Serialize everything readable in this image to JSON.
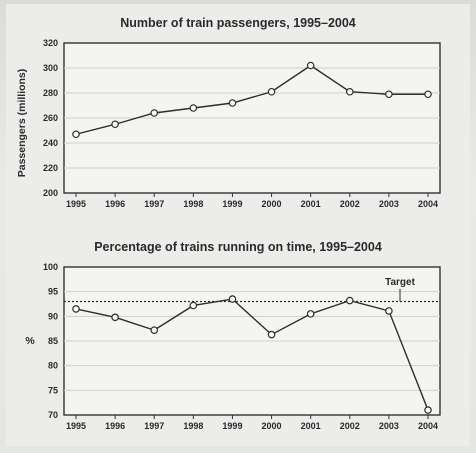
{
  "chart_data": [
    {
      "type": "line",
      "title": "Number of train passengers, 1995–2004",
      "xlabel": "",
      "ylabel": "Passengers (millions)",
      "x": [
        "1995",
        "1996",
        "1997",
        "1998",
        "1999",
        "2000",
        "2001",
        "2002",
        "2003",
        "2004"
      ],
      "series": [
        {
          "values": [
            247,
            255,
            264,
            268,
            272,
            281,
            302,
            281,
            279,
            279
          ]
        }
      ],
      "ylim": [
        200,
        320
      ],
      "yticks": [
        "200",
        "220",
        "240",
        "260",
        "280",
        "300",
        "320"
      ],
      "grid": true,
      "legend": "none"
    },
    {
      "type": "line",
      "title": "Percentage of trains running on time, 1995–2004",
      "xlabel": "",
      "ylabel": "%",
      "x": [
        "1995",
        "1996",
        "1997",
        "1998",
        "1999",
        "2000",
        "2001",
        "2002",
        "2003",
        "2004"
      ],
      "series": [
        {
          "values": [
            91.5,
            89.8,
            87.2,
            92.2,
            93.5,
            86.3,
            90.5,
            93.2,
            91.1,
            71
          ]
        }
      ],
      "target": {
        "label": "Target",
        "value": 93
      },
      "ylim": [
        70,
        100
      ],
      "yticks": [
        "70",
        "75",
        "80",
        "85",
        "90",
        "95",
        "100"
      ],
      "grid": true,
      "legend": "none"
    }
  ]
}
